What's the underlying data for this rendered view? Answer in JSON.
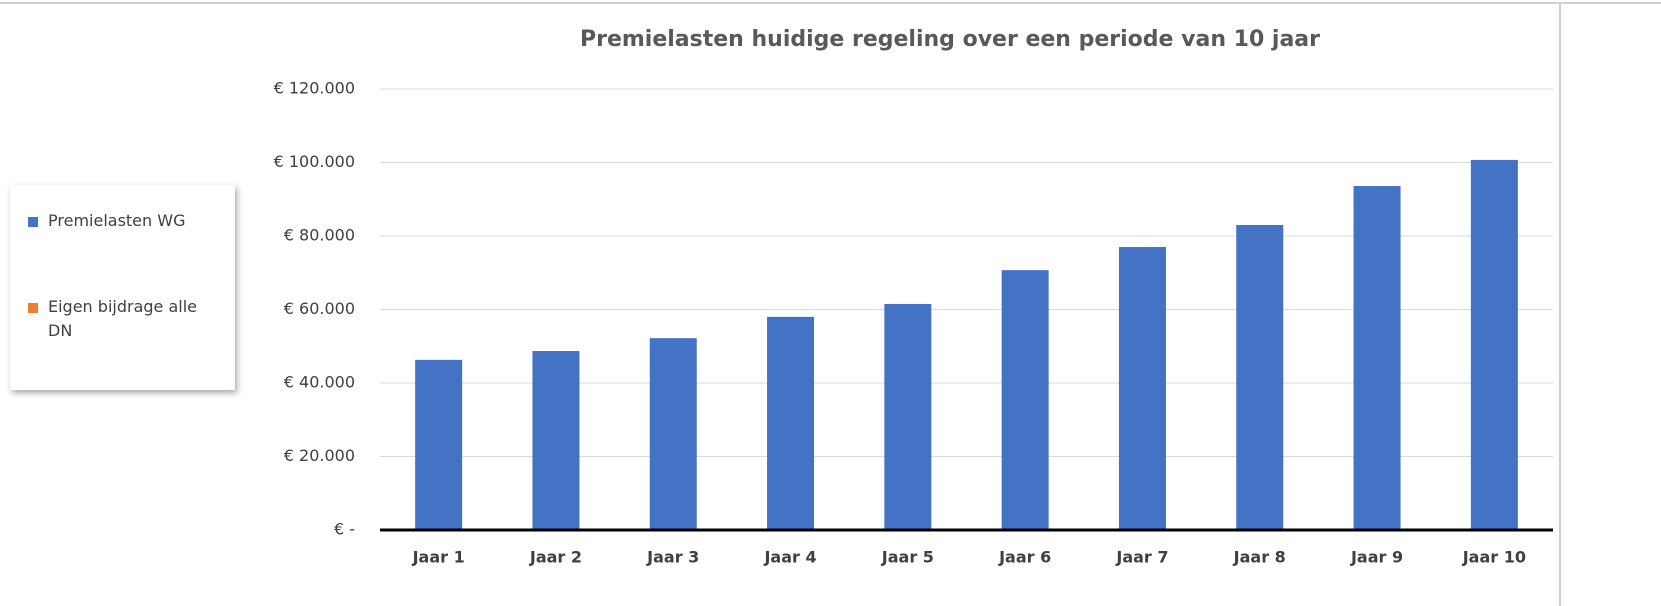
{
  "chart_data": {
    "type": "bar",
    "title": "Premielasten huidige regeling over een periode van 10 jaar",
    "categories": [
      "Jaar 1",
      "Jaar 2",
      "Jaar 3",
      "Jaar 4",
      "Jaar 5",
      "Jaar 6",
      "Jaar 7",
      "Jaar 8",
      "Jaar 9",
      "Jaar 10"
    ],
    "series": [
      {
        "name": "Premielasten WG",
        "color": "#4472c4",
        "values": [
          46300,
          48700,
          52200,
          58000,
          61500,
          70700,
          77000,
          83000,
          93600,
          100700
        ]
      },
      {
        "name": "Eigen bijdrage alle DN",
        "color": "#ed7d31",
        "values": [
          0,
          0,
          0,
          0,
          0,
          0,
          0,
          0,
          0,
          0
        ]
      }
    ],
    "stacked": true,
    "ylim": [
      0,
      120000
    ],
    "yticks": [
      {
        "value": 0,
        "label": "€ -"
      },
      {
        "value": 20000,
        "label": "€ 20.000"
      },
      {
        "value": 40000,
        "label": "€ 40.000"
      },
      {
        "value": 60000,
        "label": "€ 60.000"
      },
      {
        "value": 80000,
        "label": "€ 80.000"
      },
      {
        "value": 100000,
        "label": "€ 100.000"
      },
      {
        "value": 120000,
        "label": "€ 120.000"
      }
    ],
    "grid": true,
    "legend": "left"
  }
}
